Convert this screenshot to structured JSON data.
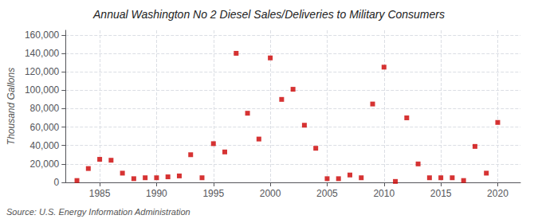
{
  "chart_data": {
    "type": "scatter",
    "title": "Annual Washington No 2 Diesel Sales/Deliveries to Military Consumers",
    "ylabel": "Thousand Gallons",
    "annotations": [
      "Source: U.S. Energy Information Administration"
    ],
    "x": [
      1983,
      1984,
      1985,
      1986,
      1987,
      1988,
      1989,
      1990,
      1991,
      1992,
      1993,
      1994,
      1995,
      1996,
      1997,
      1998,
      1999,
      2000,
      2001,
      2002,
      2003,
      2004,
      2005,
      2006,
      2007,
      2008,
      2009,
      2010,
      2011,
      2012,
      2013,
      2014,
      2015,
      2016,
      2017,
      2018,
      2019,
      2020
    ],
    "values": [
      2000,
      15000,
      25000,
      24000,
      10000,
      4000,
      5000,
      5000,
      6000,
      7000,
      30000,
      5000,
      42000,
      33000,
      140000,
      75000,
      47000,
      135000,
      90000,
      101000,
      62000,
      37000,
      4000,
      4000,
      8000,
      5000,
      85000,
      125000,
      1000,
      70000,
      20000,
      5000,
      5000,
      5000,
      2000,
      39000,
      10000,
      65000
    ],
    "color": "#cc0000",
    "marker": "square",
    "xlim": [
      1982,
      2022
    ],
    "xticks": [
      1985,
      1990,
      1995,
      2000,
      2005,
      2010,
      2015,
      2020
    ],
    "ylim": [
      0,
      165000
    ],
    "yticks": [
      0,
      {
        "value": 20000,
        "label": "20,000"
      },
      {
        "value": 40000,
        "label": "40,000"
      },
      {
        "value": 60000,
        "label": "60,000"
      },
      {
        "value": 80000,
        "label": "80,000"
      },
      {
        "value": 100000,
        "label": "100,000"
      },
      {
        "value": 120000,
        "label": "120,000"
      },
      {
        "value": 140000,
        "label": "140,000"
      },
      {
        "value": 160000,
        "label": "160,000"
      }
    ],
    "grid": true
  }
}
